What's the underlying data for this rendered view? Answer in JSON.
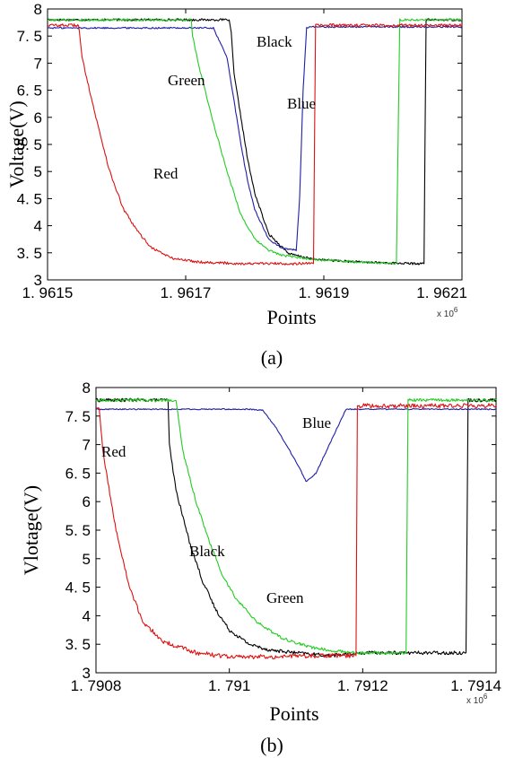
{
  "chart_data": [
    {
      "type": "line",
      "caption": "(a)",
      "xlabel": "Points",
      "ylabel": "Voltage(V)",
      "x_multiplier": "x 10^6",
      "xlim": [
        1.9615,
        1.9621
      ],
      "ylim": [
        3,
        8
      ],
      "x_ticks": [
        1.9615,
        1.9617,
        1.9619,
        1.9621
      ],
      "x_tick_labels": [
        "1. 9615",
        "1. 9617",
        "1. 9619",
        "1. 9621"
      ],
      "y_ticks": [
        3,
        3.5,
        4,
        4.5,
        5,
        5.5,
        6,
        6.5,
        7,
        7.5,
        8
      ],
      "y_tick_labels": [
        "3",
        "3. 5",
        "4",
        "4. 5",
        "5",
        "5. 5",
        "6",
        "6. 5",
        "7",
        "7. 5",
        "8"
      ],
      "series": [
        {
          "name": "Black",
          "color": "#000000",
          "noise": 0.02,
          "x": [
            1.9615,
            1.961763,
            1.961766,
            1.96177,
            1.96178,
            1.96179,
            1.9618,
            1.96182,
            1.96184,
            1.96185,
            1.961885,
            1.96195,
            1.96203,
            1.962045,
            1.962048,
            1.9621
          ],
          "y": [
            7.8,
            7.8,
            7.55,
            6.8,
            6.0,
            5.2,
            4.6,
            3.85,
            3.6,
            3.48,
            3.38,
            3.33,
            3.3,
            3.3,
            7.8,
            7.8
          ]
        },
        {
          "name": "Blue",
          "color": "#1f1fa8",
          "noise": 0.015,
          "x": [
            1.9615,
            1.96174,
            1.96176,
            1.96177,
            1.96178,
            1.96179,
            1.9618,
            1.96182,
            1.96184,
            1.96186,
            1.961865,
            1.96187,
            1.961875,
            1.961885,
            1.9621
          ],
          "y": [
            7.65,
            7.65,
            7.1,
            6.3,
            5.5,
            4.8,
            4.3,
            3.75,
            3.58,
            3.55,
            4.5,
            6.5,
            7.65,
            7.67,
            7.67
          ]
        },
        {
          "name": "Green",
          "color": "#22cc22",
          "noise": 0.02,
          "x": [
            1.9615,
            1.961708,
            1.96171,
            1.96172,
            1.96174,
            1.96176,
            1.96178,
            1.9618,
            1.96182,
            1.96184,
            1.961885,
            1.96195,
            1.962005,
            1.96201,
            1.9621
          ],
          "y": [
            7.8,
            7.8,
            7.5,
            6.9,
            5.9,
            5.0,
            4.2,
            3.75,
            3.55,
            3.45,
            3.38,
            3.33,
            3.3,
            7.8,
            7.8
          ]
        },
        {
          "name": "Red",
          "color": "#dd1111",
          "noise": 0.025,
          "x": [
            1.9615,
            1.961545,
            1.96155,
            1.96157,
            1.96159,
            1.96161,
            1.96163,
            1.96165,
            1.96168,
            1.96172,
            1.96178,
            1.96184,
            1.961885,
            1.961888,
            1.9621
          ],
          "y": [
            7.7,
            7.7,
            7.1,
            6.0,
            5.0,
            4.3,
            3.9,
            3.6,
            3.4,
            3.33,
            3.3,
            3.3,
            3.3,
            7.7,
            7.7
          ]
        }
      ],
      "annotations": [
        "Black",
        "Green",
        "Blue",
        "Red"
      ]
    },
    {
      "type": "line",
      "caption": "(b)",
      "xlabel": "Points",
      "ylabel": "Vlotage(V)",
      "x_multiplier": "x 10^6",
      "xlim": [
        1.7908,
        1.7914
      ],
      "ylim": [
        3,
        8
      ],
      "x_ticks": [
        1.7908,
        1.791,
        1.7912,
        1.7914
      ],
      "x_tick_labels": [
        "1. 7908",
        "1. 791",
        "1. 7912",
        "1. 7914"
      ],
      "y_ticks": [
        3,
        3.5,
        4,
        4.5,
        5,
        5.5,
        6,
        6.5,
        7,
        7.5,
        8
      ],
      "y_tick_labels": [
        "3",
        "3. 5",
        "4",
        "4. 5",
        "5",
        "5. 5",
        "6",
        "6. 5",
        "7",
        "7. 5",
        "8"
      ],
      "series": [
        {
          "name": "Black",
          "color": "#000000",
          "noise": 0.03,
          "x": [
            1.7908,
            1.790908,
            1.79091,
            1.79092,
            1.79094,
            1.79096,
            1.79098,
            1.791,
            1.79103,
            1.79106,
            1.7911,
            1.79115,
            1.7912,
            1.79125,
            1.79132,
            1.791355,
            1.791358,
            1.7914
          ],
          "y": [
            7.78,
            7.78,
            7.0,
            6.2,
            5.3,
            4.6,
            4.1,
            3.75,
            3.5,
            3.4,
            3.35,
            3.3,
            3.35,
            3.35,
            3.35,
            3.35,
            7.78,
            7.78
          ]
        },
        {
          "name": "Blue",
          "color": "#1f1fa8",
          "noise": 0.01,
          "x": [
            1.7908,
            1.79103,
            1.79105,
            1.79107,
            1.79109,
            1.791105,
            1.791115,
            1.79113,
            1.79115,
            1.791175,
            1.7914
          ],
          "y": [
            7.62,
            7.62,
            7.6,
            7.3,
            6.9,
            6.6,
            6.35,
            6.5,
            7.0,
            7.62,
            7.62
          ]
        },
        {
          "name": "Green",
          "color": "#22cc22",
          "noise": 0.025,
          "x": [
            1.7908,
            1.79092,
            1.79093,
            1.79095,
            1.79097,
            1.79099,
            1.79101,
            1.79104,
            1.79108,
            1.79112,
            1.79116,
            1.79119,
            1.791265,
            1.791268,
            1.7914
          ],
          "y": [
            7.78,
            7.78,
            6.9,
            6.0,
            5.3,
            4.7,
            4.3,
            3.9,
            3.6,
            3.45,
            3.38,
            3.35,
            3.35,
            7.78,
            7.78
          ]
        },
        {
          "name": "Red",
          "color": "#dd1111",
          "noise": 0.04,
          "x": [
            1.7908,
            1.790805,
            1.79081,
            1.79083,
            1.79085,
            1.79087,
            1.7909,
            1.79095,
            1.791,
            1.79106,
            1.79112,
            1.79119,
            1.791192,
            1.7914
          ],
          "y": [
            7.65,
            7.65,
            6.9,
            5.5,
            4.5,
            3.9,
            3.55,
            3.35,
            3.28,
            3.28,
            3.3,
            3.3,
            7.68,
            7.68
          ]
        }
      ],
      "annotations": [
        "Red",
        "Blue",
        "Black",
        "Green"
      ]
    }
  ]
}
